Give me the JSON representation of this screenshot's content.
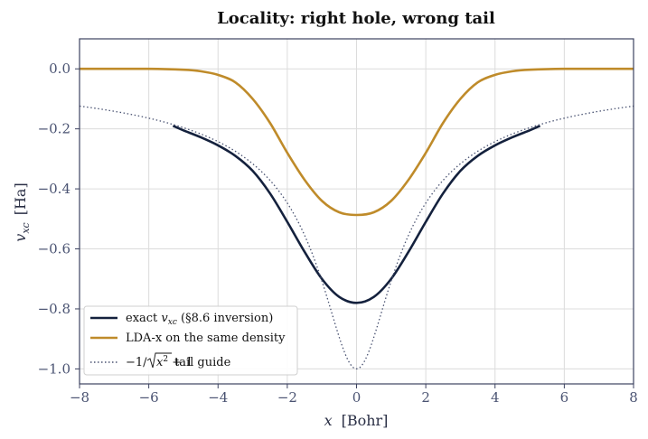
{
  "chart_data": {
    "type": "line",
    "title": "Locality: right hole, wrong tail",
    "xlabel_var": "x",
    "xlabel_unit": "[Bohr]",
    "ylabel_var": "v",
    "ylabel_sub": "xc",
    "ylabel_unit": "[Ha]",
    "xlim": [
      -8,
      8
    ],
    "ylim": [
      -1.05,
      0.1
    ],
    "xticks": [
      -8,
      -6,
      -4,
      -2,
      0,
      2,
      4,
      6,
      8
    ],
    "xtick_labels": [
      "−8",
      "−6",
      "−4",
      "−2",
      "0",
      "2",
      "4",
      "6",
      "8"
    ],
    "yticks": [
      0.0,
      -0.2,
      -0.4,
      -0.6,
      -0.8,
      -1.0
    ],
    "ytick_labels": [
      "0.0",
      "−0.2",
      "−0.4",
      "−0.6",
      "−0.8",
      "−1.0"
    ],
    "grid": true,
    "legend_position": "lower-left",
    "series": [
      {
        "name": "exact v_xc (§8.6 inversion)",
        "legend_prefix": "exact ",
        "legend_var": "v",
        "legend_sub": "xc",
        "legend_suffix": " (§8.6 inversion)",
        "color": "#14213d",
        "style": "solid",
        "x": [
          -5.3,
          -5.0,
          -4.5,
          -4.0,
          -3.5,
          -3.0,
          -2.5,
          -2.0,
          -1.5,
          -1.0,
          -0.5,
          0.0,
          0.5,
          1.0,
          1.5,
          2.0,
          2.5,
          3.0,
          3.5,
          4.0,
          4.5,
          5.0,
          5.3
        ],
        "y": [
          -0.19,
          -0.205,
          -0.228,
          -0.255,
          -0.29,
          -0.34,
          -0.415,
          -0.51,
          -0.61,
          -0.7,
          -0.76,
          -0.78,
          -0.76,
          -0.7,
          -0.61,
          -0.51,
          -0.415,
          -0.34,
          -0.29,
          -0.255,
          -0.228,
          -0.205,
          -0.19
        ]
      },
      {
        "name": "LDA-x on the same density",
        "color": "#bf8b2a",
        "style": "solid",
        "x": [
          -8.0,
          -6.0,
          -5.0,
          -4.5,
          -4.0,
          -3.5,
          -3.0,
          -2.5,
          -2.0,
          -1.5,
          -1.0,
          -0.5,
          0.0,
          0.5,
          1.0,
          1.5,
          2.0,
          2.5,
          3.0,
          3.5,
          4.0,
          4.5,
          5.0,
          6.0,
          8.0
        ],
        "y": [
          0.0,
          0.0,
          -0.003,
          -0.008,
          -0.02,
          -0.045,
          -0.1,
          -0.18,
          -0.28,
          -0.37,
          -0.44,
          -0.478,
          -0.487,
          -0.478,
          -0.44,
          -0.37,
          -0.28,
          -0.18,
          -0.1,
          -0.045,
          -0.02,
          -0.008,
          -0.003,
          0.0,
          0.0
        ]
      },
      {
        "name": "−1/√(x²+1) tail guide",
        "legend_suffix": " tail guide",
        "color": "#4a5372",
        "style": "dotted",
        "formula": "-1/sqrt(x^2+1)",
        "x": [
          -8.0,
          -7.0,
          -6.0,
          -5.0,
          -4.0,
          -3.0,
          -2.5,
          -2.0,
          -1.5,
          -1.0,
          -0.5,
          0.0,
          0.5,
          1.0,
          1.5,
          2.0,
          2.5,
          3.0,
          4.0,
          5.0,
          6.0,
          7.0,
          8.0
        ],
        "y": [
          -0.124,
          -0.141,
          -0.164,
          -0.196,
          -0.243,
          -0.316,
          -0.371,
          -0.447,
          -0.555,
          -0.707,
          -0.894,
          -1.0,
          -0.894,
          -0.707,
          -0.555,
          -0.447,
          -0.371,
          -0.316,
          -0.243,
          -0.196,
          -0.164,
          -0.141,
          -0.124
        ]
      }
    ]
  }
}
